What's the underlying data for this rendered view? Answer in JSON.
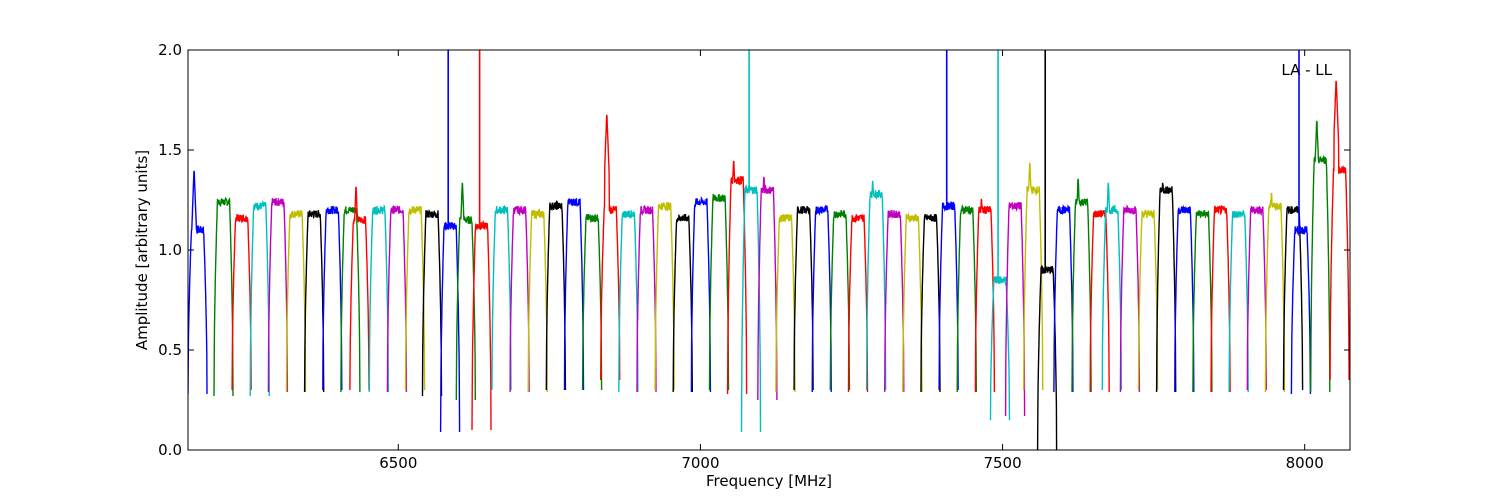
{
  "chart_data": {
    "type": "line",
    "title": "",
    "xlabel": "Frequency [MHz]",
    "ylabel": "Amplitude [arbitrary units]",
    "xlim": [
      6152,
      8075
    ],
    "ylim": [
      0.0,
      2.0
    ],
    "x_ticks": [
      6500,
      7000,
      7500,
      8000
    ],
    "x_tick_labels": [
      "6500",
      "7000",
      "7500",
      "8000"
    ],
    "y_ticks": [
      0.0,
      0.5,
      1.0,
      1.5,
      2.0
    ],
    "y_tick_labels": [
      "0.0",
      "0.5",
      "1.0",
      "1.5",
      "2.0"
    ],
    "annotation": "LA - LL",
    "annotation_position": "top-right",
    "grid": false,
    "legend": "none",
    "spw_width_mhz": 31.5,
    "color_cycle": [
      "#0000ff",
      "#008000",
      "#ff0000",
      "#00bfbf",
      "#bf00bf",
      "#bfbf00",
      "#000000"
    ],
    "raw_color": "#c0c0c0",
    "series": [
      {
        "x_start": 6152,
        "plateau": 1.1,
        "edge_low": 0.28,
        "peak": 1.41
      },
      {
        "x_start": 6195,
        "plateau": 1.24,
        "edge_low": 0.27
      },
      {
        "x_start": 6225,
        "plateau": 1.16,
        "edge_low": 0.3
      },
      {
        "x_start": 6255,
        "plateau": 1.22,
        "edge_low": 0.27
      },
      {
        "x_start": 6285,
        "plateau": 1.24,
        "edge_low": 0.29
      },
      {
        "x_start": 6315,
        "plateau": 1.18,
        "edge_low": 0.29
      },
      {
        "x_start": 6345,
        "plateau": 1.18,
        "edge_low": 0.29
      },
      {
        "x_start": 6375,
        "plateau": 1.2,
        "edge_low": 0.3
      },
      {
        "x_start": 6405,
        "plateau": 1.2,
        "edge_low": 0.29
      },
      {
        "x_start": 6420,
        "plateau": 1.15,
        "edge_low": 0.3,
        "peak": 1.33
      },
      {
        "x_start": 6452,
        "plateau": 1.2,
        "edge_low": 0.29
      },
      {
        "x_start": 6482,
        "plateau": 1.2,
        "edge_low": 0.29
      },
      {
        "x_start": 6512,
        "plateau": 1.2,
        "edge_low": 0.3
      },
      {
        "x_start": 6540,
        "plateau": 1.18,
        "edge_low": 0.27
      },
      {
        "x_start": 6570,
        "plateau": 1.12,
        "edge_low": 0.09,
        "spike": 2.0
      },
      {
        "x_start": 6596,
        "plateau": 1.15,
        "edge_low": 0.25,
        "peak": 1.35
      },
      {
        "x_start": 6622,
        "plateau": 1.12,
        "edge_low": 0.1,
        "spike": 2.0
      },
      {
        "x_start": 6655,
        "plateau": 1.2,
        "edge_low": 0.3
      },
      {
        "x_start": 6685,
        "plateau": 1.2,
        "edge_low": 0.29
      },
      {
        "x_start": 6715,
        "plateau": 1.18,
        "edge_low": 0.29
      },
      {
        "x_start": 6745,
        "plateau": 1.22,
        "edge_low": 0.3
      },
      {
        "x_start": 6775,
        "plateau": 1.24,
        "edge_low": 0.3
      },
      {
        "x_start": 6805,
        "plateau": 1.16,
        "edge_low": 0.3
      },
      {
        "x_start": 6835,
        "plateau": 1.2,
        "edge_low": 0.35,
        "peak": 1.69
      },
      {
        "x_start": 6865,
        "plateau": 1.18,
        "edge_low": 0.29
      },
      {
        "x_start": 6895,
        "plateau": 1.2,
        "edge_low": 0.29
      },
      {
        "x_start": 6925,
        "plateau": 1.22,
        "edge_low": 0.3
      },
      {
        "x_start": 6955,
        "plateau": 1.16,
        "edge_low": 0.29
      },
      {
        "x_start": 6985,
        "plateau": 1.24,
        "edge_low": 0.29
      },
      {
        "x_start": 7015,
        "plateau": 1.26,
        "edge_low": 0.3
      },
      {
        "x_start": 7045,
        "plateau": 1.35,
        "edge_low": 0.28,
        "peak": 1.46
      },
      {
        "x_start": 7068,
        "plateau": 1.3,
        "edge_low": 0.09,
        "spike": 2.0
      },
      {
        "x_start": 7095,
        "plateau": 1.3,
        "edge_low": 0.25,
        "peak": 1.38
      },
      {
        "x_start": 7125,
        "plateau": 1.16,
        "edge_low": 0.29
      },
      {
        "x_start": 7155,
        "plateau": 1.2,
        "edge_low": 0.3
      },
      {
        "x_start": 7185,
        "plateau": 1.2,
        "edge_low": 0.29
      },
      {
        "x_start": 7215,
        "plateau": 1.18,
        "edge_low": 0.3
      },
      {
        "x_start": 7245,
        "plateau": 1.16,
        "edge_low": 0.29
      },
      {
        "x_start": 7275,
        "plateau": 1.28,
        "edge_low": 0.3,
        "peak": 1.36
      },
      {
        "x_start": 7305,
        "plateau": 1.18,
        "edge_low": 0.29
      },
      {
        "x_start": 7335,
        "plateau": 1.16,
        "edge_low": 0.29
      },
      {
        "x_start": 7365,
        "plateau": 1.16,
        "edge_low": 0.29
      },
      {
        "x_start": 7395,
        "plateau": 1.22,
        "edge_low": 0.3,
        "spike": 2.0
      },
      {
        "x_start": 7425,
        "plateau": 1.2,
        "edge_low": 0.29
      },
      {
        "x_start": 7455,
        "plateau": 1.2,
        "edge_low": 0.29,
        "peak": 1.27
      },
      {
        "x_start": 7480,
        "plateau": 0.85,
        "edge_low": 0.15,
        "spike": 2.0
      },
      {
        "x_start": 7505,
        "plateau": 1.22,
        "edge_low": 0.17
      },
      {
        "x_start": 7535,
        "plateau": 1.3,
        "edge_low": 0.3,
        "peak": 1.45
      },
      {
        "x_start": 7558,
        "plateau": 0.9,
        "edge_low": 0.0,
        "spike": 2.0
      },
      {
        "x_start": 7585,
        "plateau": 1.2,
        "edge_low": 0.29
      },
      {
        "x_start": 7615,
        "plateau": 1.24,
        "edge_low": 0.29,
        "peak": 1.37
      },
      {
        "x_start": 7645,
        "plateau": 1.18,
        "edge_low": 0.29
      },
      {
        "x_start": 7665,
        "plateau": 1.2,
        "edge_low": 0.3,
        "peak": 1.35
      },
      {
        "x_start": 7695,
        "plateau": 1.2,
        "edge_low": 0.29
      },
      {
        "x_start": 7725,
        "plateau": 1.18,
        "edge_low": 0.3
      },
      {
        "x_start": 7755,
        "plateau": 1.3,
        "edge_low": 0.29,
        "peak": 1.35
      },
      {
        "x_start": 7785,
        "plateau": 1.2,
        "edge_low": 0.29
      },
      {
        "x_start": 7815,
        "plateau": 1.18,
        "edge_low": 0.29
      },
      {
        "x_start": 7845,
        "plateau": 1.2,
        "edge_low": 0.29
      },
      {
        "x_start": 7875,
        "plateau": 1.18,
        "edge_low": 0.29
      },
      {
        "x_start": 7905,
        "plateau": 1.2,
        "edge_low": 0.3
      },
      {
        "x_start": 7935,
        "plateau": 1.22,
        "edge_low": 0.29,
        "peak": 1.3
      },
      {
        "x_start": 7965,
        "plateau": 1.2,
        "edge_low": 0.3
      },
      {
        "x_start": 7978,
        "plateau": 1.1,
        "edge_low": 0.28,
        "spike": 2.0
      },
      {
        "x_start": 8010,
        "plateau": 1.45,
        "edge_low": 0.29,
        "peak": 1.66
      },
      {
        "x_start": 8042,
        "plateau": 1.4,
        "edge_low": 0.35,
        "peak": 1.86
      }
    ]
  }
}
